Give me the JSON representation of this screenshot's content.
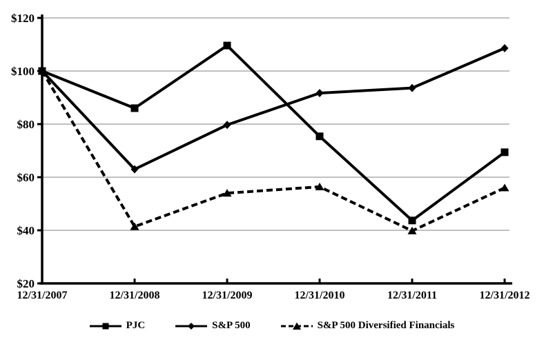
{
  "chart_data": {
    "type": "line",
    "title": "",
    "xlabel": "",
    "ylabel": "",
    "x": [
      "12/31/2007",
      "12/31/2008",
      "12/31/2009",
      "12/31/2010",
      "12/31/2011",
      "12/31/2012"
    ],
    "series": [
      {
        "name": "PJC",
        "marker": "square",
        "line_style": "solid",
        "values": [
          100,
          86,
          109.6,
          75.4,
          43.7,
          69.4
        ]
      },
      {
        "name": "S&P 500",
        "marker": "diamond",
        "line_style": "solid",
        "values": [
          100,
          63,
          79.7,
          91.7,
          93.6,
          108.6
        ]
      },
      {
        "name": "S&P 500 Diversified Financials",
        "marker": "triangle",
        "line_style": "dashed",
        "values": [
          100,
          41.4,
          54,
          56.4,
          39.8,
          56
        ]
      }
    ],
    "y_ticks": [
      120,
      100,
      80,
      60,
      40,
      20
    ],
    "y_tick_prefix": "$",
    "ylim": [
      20,
      120
    ],
    "grid": true,
    "legend_position": "bottom",
    "colors": {
      "line": "#000000",
      "gridline": "#9a9a9a",
      "axis": "#000000",
      "text": "#000000",
      "background": "#ffffff"
    }
  }
}
